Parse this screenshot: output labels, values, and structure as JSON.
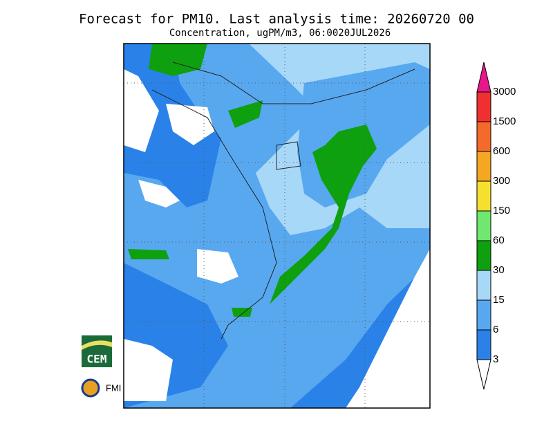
{
  "header": {
    "title": "Forecast for PM10. Last analysis time: 20260720 00",
    "subtitle": "Concentration, ugPM/m3, 06:0020JUL2026"
  },
  "legend": {
    "levels": [
      3,
      6,
      15,
      30,
      60,
      150,
      300,
      600,
      1500,
      3000
    ],
    "colors": [
      "#2a82e8",
      "#58a8f0",
      "#a8d8f8",
      "#0fa00f",
      "#70e870",
      "#f5e030",
      "#f5a623",
      "#f46a2a",
      "#f03030"
    ],
    "below_color": "#ffffff",
    "above_color": "#e8178b"
  },
  "logos": {
    "cem": "CEM",
    "fmi": "FMI"
  }
}
